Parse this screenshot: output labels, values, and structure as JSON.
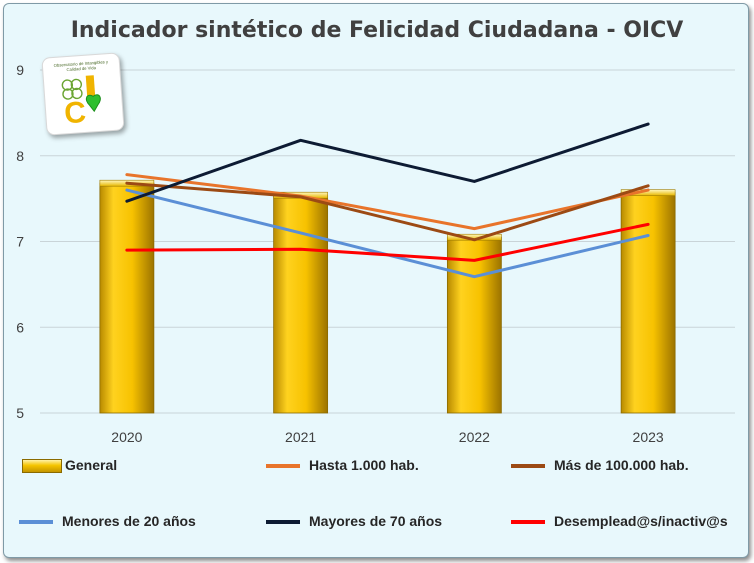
{
  "chart_data": {
    "type": "bar+line",
    "title": "Indicador sintético de Felicidad Ciudadana - OICV",
    "categories": [
      "2020",
      "2021",
      "2022",
      "2023"
    ],
    "ylim": [
      5,
      9
    ],
    "yticks": [
      "5",
      "6",
      "7",
      "8",
      "9"
    ],
    "bar_series": {
      "name": "General",
      "values": [
        7.68,
        7.54,
        7.05,
        7.57
      ],
      "color": "#f5c400"
    },
    "line_series": [
      {
        "name": "Hasta 1.000 hab.",
        "values": [
          7.78,
          7.53,
          7.15,
          7.6
        ],
        "color": "#e8742b"
      },
      {
        "name": "Más de 100.000 hab.",
        "values": [
          7.68,
          7.52,
          7.02,
          7.65
        ],
        "color": "#9c4a14"
      },
      {
        "name": "Menores de 20 años",
        "values": [
          7.6,
          7.1,
          6.59,
          7.07
        ],
        "color": "#5b8fd6"
      },
      {
        "name": "Mayores de 70 años",
        "values": [
          7.47,
          8.18,
          7.7,
          8.37
        ],
        "color": "#0d1b33"
      },
      {
        "name": "Desemplead@s/inactiv@s",
        "values": [
          6.9,
          6.91,
          6.78,
          7.2
        ],
        "color": "#ff0000"
      }
    ],
    "grid": true,
    "legend_position": "bottom"
  },
  "logo": {
    "text": "Observatorio de Intangibles y Calidad de Vida",
    "letters": "C I"
  }
}
